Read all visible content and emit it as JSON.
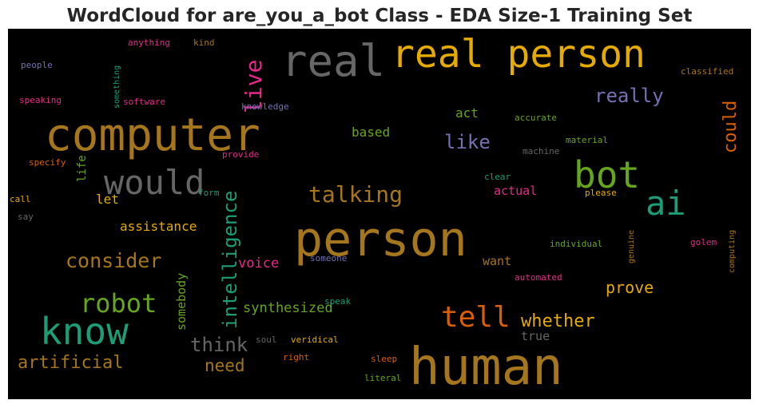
{
  "title": "WordCloud for are_you_a_bot Class - EDA Size-1 Training Set",
  "words": {
    "real_person": {
      "text": "real person",
      "color": "#e6ab02"
    },
    "real": {
      "text": "real",
      "color": "#666666"
    },
    "live": {
      "text": "live",
      "color": "#e7298a"
    },
    "computer": {
      "text": "computer",
      "color": "#a6761d"
    },
    "would": {
      "text": "would",
      "color": "#666666"
    },
    "bot": {
      "text": "bot",
      "color": "#66a61e"
    },
    "ai": {
      "text": "ai",
      "color": "#1b9e77"
    },
    "person": {
      "text": "person",
      "color": "#a6761d"
    },
    "human": {
      "text": "human",
      "color": "#a6761d"
    },
    "know": {
      "text": "know",
      "color": "#1b9e77"
    },
    "intelligence": {
      "text": "intelligence",
      "color": "#1b9e77"
    },
    "talking": {
      "text": "talking",
      "color": "#a6761d"
    },
    "robot": {
      "text": "robot",
      "color": "#66a61e"
    },
    "consider": {
      "text": "consider",
      "color": "#a6761d"
    },
    "tell": {
      "text": "tell",
      "color": "#d95f02"
    },
    "really": {
      "text": "really",
      "color": "#7570b3"
    },
    "could": {
      "text": "could",
      "color": "#d95f02"
    },
    "like": {
      "text": "like",
      "color": "#7570b3"
    },
    "artificial": {
      "text": "artificial",
      "color": "#a6761d"
    },
    "think": {
      "text": "think",
      "color": "#666666"
    },
    "whether": {
      "text": "whether",
      "color": "#e6ab02"
    },
    "need": {
      "text": "need",
      "color": "#a6761d"
    },
    "prove": {
      "text": "prove",
      "color": "#e6ab02"
    },
    "synthesized": {
      "text": "synthesized",
      "color": "#66a61e"
    },
    "voice": {
      "text": "voice",
      "color": "#e7298a"
    },
    "assistance": {
      "text": "assistance",
      "color": "#e6ab02"
    },
    "based": {
      "text": "based",
      "color": "#66a61e"
    },
    "act": {
      "text": "act",
      "color": "#66a61e"
    },
    "actual": {
      "text": "actual",
      "color": "#e7298a"
    },
    "want": {
      "text": "want",
      "color": "#a6761d"
    },
    "true": {
      "text": "true",
      "color": "#666666"
    },
    "somebody": {
      "text": "somebody",
      "color": "#66a61e"
    },
    "let": {
      "text": "let",
      "color": "#e6ab02"
    },
    "life": {
      "text": "life",
      "color": "#66a61e"
    },
    "anything": {
      "text": "anything",
      "color": "#e7298a"
    },
    "kind": {
      "text": "kind",
      "color": "#a6761d"
    },
    "people": {
      "text": "people",
      "color": "#7570b3"
    },
    "something": {
      "text": "something",
      "color": "#1b9e77"
    },
    "speaking": {
      "text": "speaking",
      "color": "#e7298a"
    },
    "software": {
      "text": "software",
      "color": "#e7298a"
    },
    "knowledge": {
      "text": "knowledge",
      "color": "#7570b3"
    },
    "classified": {
      "text": "classified",
      "color": "#a6761d"
    },
    "accurate": {
      "text": "accurate",
      "color": "#66a61e"
    },
    "machine": {
      "text": "machine",
      "color": "#666666"
    },
    "material": {
      "text": "material",
      "color": "#66a61e"
    },
    "provide": {
      "text": "provide",
      "color": "#e7298a"
    },
    "specify": {
      "text": "specify",
      "color": "#d95f02"
    },
    "form": {
      "text": "form",
      "color": "#1b9e77"
    },
    "clear": {
      "text": "clear",
      "color": "#1b9e77"
    },
    "please": {
      "text": "please",
      "color": "#e6ab02"
    },
    "call": {
      "text": "call",
      "color": "#e6ab02"
    },
    "say": {
      "text": "say",
      "color": "#666666"
    },
    "individual": {
      "text": "individual",
      "color": "#66a61e"
    },
    "genuine": {
      "text": "genuine",
      "color": "#a6761d"
    },
    "golem": {
      "text": "golem",
      "color": "#e7298a"
    },
    "computing": {
      "text": "computing",
      "color": "#a6761d"
    },
    "someone": {
      "text": "someone",
      "color": "#7570b3"
    },
    "automated": {
      "text": "automated",
      "color": "#e7298a"
    },
    "speak": {
      "text": "speak",
      "color": "#1b9e77"
    },
    "soul": {
      "text": "soul",
      "color": "#666666"
    },
    "veridical": {
      "text": "veridical",
      "color": "#e6ab02"
    },
    "right": {
      "text": "right",
      "color": "#d95f02"
    },
    "sleep": {
      "text": "sleep",
      "color": "#d95f02"
    },
    "literal": {
      "text": "literal",
      "color": "#66a61e"
    }
  }
}
